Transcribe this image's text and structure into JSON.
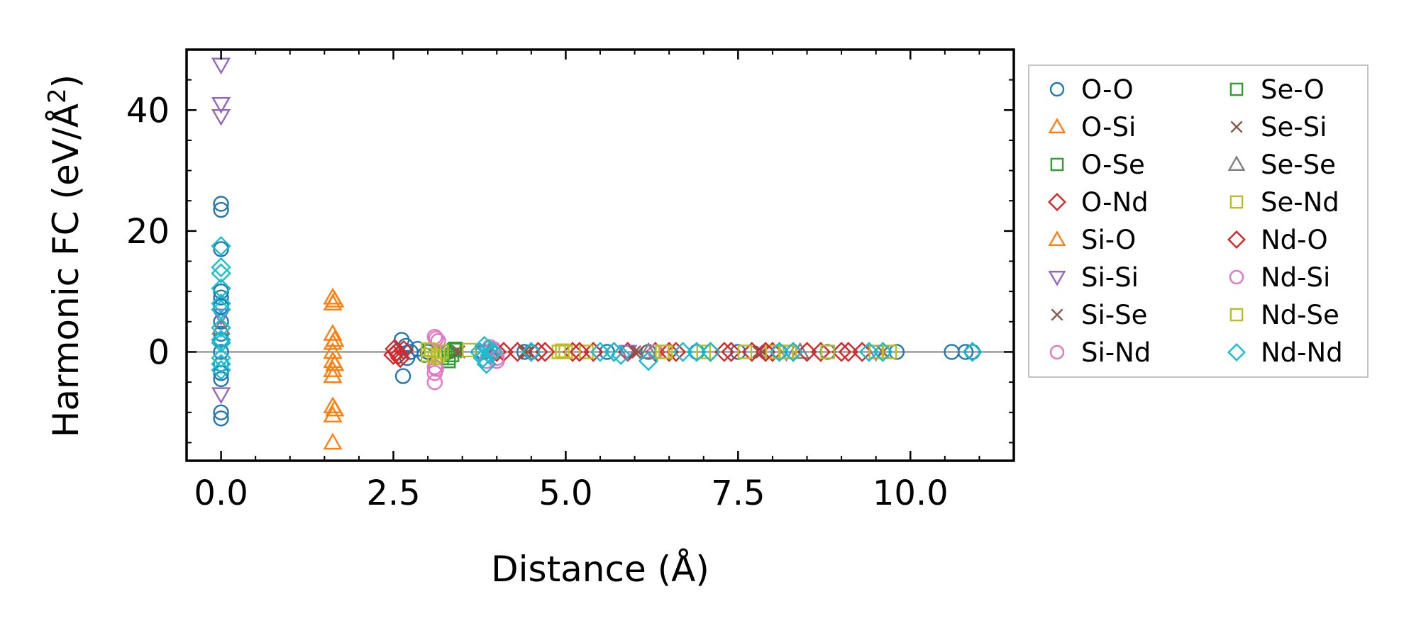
{
  "chart_data": {
    "type": "scatter",
    "title": "",
    "xlabel": "Distance (Å)",
    "ylabel": "Harmonic FC (eV/Å²)",
    "ylabel_base": "Harmonic FC (eV/Å",
    "ylabel_sup": "2",
    "ylabel_close": ")",
    "xlim": [
      -0.5,
      11.5
    ],
    "ylim": [
      -18,
      50
    ],
    "xticks": [
      0.0,
      2.5,
      5.0,
      7.5,
      10.0
    ],
    "xtick_labels": [
      "0.0",
      "2.5",
      "5.0",
      "7.5",
      "10.0"
    ],
    "yticks": [
      0,
      20,
      40
    ],
    "ytick_labels": [
      "0",
      "20",
      "40"
    ],
    "zero_line": true,
    "grid": false,
    "legend_position": "outside-right",
    "series": [
      {
        "name": "O-O",
        "marker": "circle",
        "color": "#1f77b4",
        "points": [
          [
            0,
            24.5
          ],
          [
            0,
            23.5
          ],
          [
            0,
            17
          ],
          [
            0,
            10
          ],
          [
            0,
            9
          ],
          [
            0,
            7.5
          ],
          [
            0,
            5
          ],
          [
            0,
            3
          ],
          [
            0,
            2
          ],
          [
            0,
            0
          ],
          [
            0,
            -2
          ],
          [
            0,
            -3.5
          ],
          [
            0,
            -4.5
          ],
          [
            0,
            -10
          ],
          [
            0,
            -11
          ],
          [
            2.62,
            2
          ],
          [
            2.64,
            -4
          ],
          [
            2.68,
            1
          ],
          [
            2.7,
            -1
          ],
          [
            2.75,
            0
          ],
          [
            2.85,
            0.5
          ],
          [
            2.95,
            -0.5
          ],
          [
            3.0,
            0
          ],
          [
            3.3,
            0
          ],
          [
            3.8,
            0
          ],
          [
            4.4,
            0
          ],
          [
            4.5,
            0
          ],
          [
            5.6,
            0
          ],
          [
            6.2,
            0
          ],
          [
            6.9,
            0
          ],
          [
            7.5,
            0
          ],
          [
            8.1,
            0
          ],
          [
            8.8,
            0
          ],
          [
            9.8,
            0
          ],
          [
            10.6,
            0
          ],
          [
            10.8,
            0
          ],
          [
            10.9,
            0
          ]
        ]
      },
      {
        "name": "O-Si",
        "marker": "triangle-up",
        "color": "#ff7f0e",
        "points": [
          [
            1.62,
            9
          ],
          [
            1.62,
            8
          ],
          [
            1.62,
            3
          ],
          [
            1.62,
            1.5
          ],
          [
            1.62,
            0
          ],
          [
            1.62,
            -1.5
          ],
          [
            1.62,
            -3
          ],
          [
            1.62,
            -4
          ],
          [
            1.62,
            -9
          ],
          [
            1.62,
            -10.5
          ],
          [
            1.62,
            -15
          ]
        ]
      },
      {
        "name": "O-Se",
        "marker": "square",
        "color": "#2ca02c",
        "points": [
          [
            3.2,
            -1
          ],
          [
            3.3,
            -1.5
          ],
          [
            3.35,
            -0.5
          ],
          [
            3.4,
            0.5
          ]
        ]
      },
      {
        "name": "O-Nd",
        "marker": "diamond",
        "color": "#d62728",
        "points": [
          [
            2.5,
            -0.5
          ],
          [
            2.55,
            0
          ],
          [
            2.6,
            -1
          ],
          [
            2.65,
            0.3
          ],
          [
            4.0,
            0
          ],
          [
            4.3,
            0
          ],
          [
            4.6,
            0
          ],
          [
            5.1,
            0
          ],
          [
            5.4,
            0
          ],
          [
            5.9,
            0
          ],
          [
            6.3,
            0
          ],
          [
            6.6,
            0
          ],
          [
            7.1,
            0
          ],
          [
            7.4,
            0
          ],
          [
            7.7,
            0
          ],
          [
            8.0,
            0
          ],
          [
            8.3,
            0
          ],
          [
            8.7,
            0
          ],
          [
            9.0,
            0
          ],
          [
            9.3,
            0
          ]
        ]
      },
      {
        "name": "Si-O",
        "marker": "triangle-up",
        "color": "#ff7f0e",
        "points": [
          [
            1.65,
            8.5
          ],
          [
            1.65,
            2
          ],
          [
            1.65,
            -2
          ],
          [
            1.65,
            -9.5
          ]
        ]
      },
      {
        "name": "Si-Si",
        "marker": "triangle-down",
        "color": "#9467bd",
        "points": [
          [
            0,
            47.5
          ],
          [
            0,
            41
          ],
          [
            0,
            39
          ],
          [
            0,
            6
          ],
          [
            0,
            -7
          ],
          [
            3.85,
            0
          ],
          [
            5.9,
            0
          ],
          [
            8.2,
            0
          ],
          [
            9.5,
            0
          ]
        ]
      },
      {
        "name": "Si-Se",
        "marker": "x",
        "color": "#8c564b",
        "points": [
          [
            3.4,
            0
          ],
          [
            4.4,
            0
          ],
          [
            6.0,
            0
          ],
          [
            7.8,
            0
          ],
          [
            9.6,
            0
          ]
        ]
      },
      {
        "name": "Si-Nd",
        "marker": "circle",
        "color": "#e377c2",
        "points": [
          [
            3.1,
            2.5
          ],
          [
            3.15,
            1.8
          ],
          [
            3.1,
            -2.5
          ],
          [
            3.1,
            -3.5
          ],
          [
            3.1,
            -5
          ],
          [
            3.85,
            -1.5
          ],
          [
            3.95,
            0.5
          ],
          [
            4.0,
            -1.5
          ],
          [
            6.3,
            0
          ],
          [
            7.9,
            0
          ]
        ]
      },
      {
        "name": "Se-O",
        "marker": "square",
        "color": "#2ca02c",
        "points": [
          [
            3.25,
            0
          ],
          [
            3.3,
            -1
          ],
          [
            3.38,
            0.3
          ]
        ]
      },
      {
        "name": "Se-Si",
        "marker": "x",
        "color": "#8c564b",
        "points": [
          [
            3.45,
            0
          ],
          [
            4.45,
            0
          ],
          [
            6.05,
            0
          ],
          [
            7.85,
            0
          ]
        ]
      },
      {
        "name": "Se-Se",
        "marker": "triangle-up",
        "color": "#7f7f7f",
        "points": [
          [
            0,
            4
          ],
          [
            3.9,
            0
          ],
          [
            6.2,
            0
          ],
          [
            8.4,
            0
          ]
        ]
      },
      {
        "name": "Se-Nd",
        "marker": "square",
        "color": "#bcbd22",
        "points": [
          [
            3.0,
            -0.5
          ],
          [
            3.05,
            0.3
          ],
          [
            3.1,
            -1
          ],
          [
            3.2,
            0
          ],
          [
            3.6,
            0.3
          ],
          [
            4.9,
            0
          ],
          [
            5.0,
            0
          ],
          [
            5.3,
            0
          ],
          [
            6.4,
            0
          ],
          [
            7.0,
            0
          ],
          [
            7.6,
            0
          ],
          [
            8.0,
            0
          ],
          [
            8.2,
            0
          ],
          [
            8.8,
            0
          ],
          [
            9.5,
            0
          ],
          [
            9.7,
            0
          ]
        ]
      },
      {
        "name": "Nd-O",
        "marker": "diamond",
        "color": "#d62728",
        "points": [
          [
            2.52,
            0.5
          ],
          [
            2.58,
            -0.5
          ],
          [
            4.1,
            0
          ],
          [
            4.7,
            0
          ],
          [
            5.2,
            0
          ],
          [
            5.7,
            0
          ],
          [
            6.5,
            0
          ],
          [
            7.3,
            0
          ],
          [
            7.9,
            0
          ],
          [
            8.5,
            0
          ],
          [
            9.1,
            0
          ]
        ]
      },
      {
        "name": "Nd-Si",
        "marker": "circle",
        "color": "#e377c2",
        "points": [
          [
            3.12,
            2.2
          ],
          [
            3.12,
            -2.8
          ],
          [
            3.9,
            0.8
          ],
          [
            4.0,
            -1
          ]
        ]
      },
      {
        "name": "Nd-Se",
        "marker": "square",
        "color": "#bcbd22",
        "points": [
          [
            3.0,
            0.4
          ],
          [
            3.15,
            -0.6
          ],
          [
            4.95,
            0.2
          ],
          [
            6.45,
            0
          ],
          [
            8.25,
            0
          ]
        ]
      },
      {
        "name": "Nd-Nd",
        "marker": "diamond",
        "color": "#17becf",
        "points": [
          [
            0,
            17.5
          ],
          [
            0,
            14
          ],
          [
            0,
            13
          ],
          [
            0,
            10.5
          ],
          [
            0,
            8
          ],
          [
            0,
            7
          ],
          [
            0,
            4
          ],
          [
            0,
            2
          ],
          [
            0,
            1.5
          ],
          [
            0,
            -1
          ],
          [
            0,
            -2
          ],
          [
            0,
            -3
          ],
          [
            3.75,
            0
          ],
          [
            3.8,
            -1
          ],
          [
            3.82,
            1
          ],
          [
            3.85,
            -2
          ],
          [
            3.88,
            0.5
          ],
          [
            3.9,
            -0.5
          ],
          [
            3.95,
            0
          ],
          [
            4.5,
            0
          ],
          [
            5.5,
            0
          ],
          [
            5.7,
            0
          ],
          [
            5.8,
            -0.5
          ],
          [
            6.2,
            -1.5
          ],
          [
            6.7,
            0
          ],
          [
            6.9,
            0
          ],
          [
            7.1,
            0
          ],
          [
            8.1,
            0
          ],
          [
            8.3,
            0
          ],
          [
            9.4,
            0
          ],
          [
            9.6,
            0
          ],
          [
            10.9,
            0
          ]
        ]
      }
    ]
  }
}
